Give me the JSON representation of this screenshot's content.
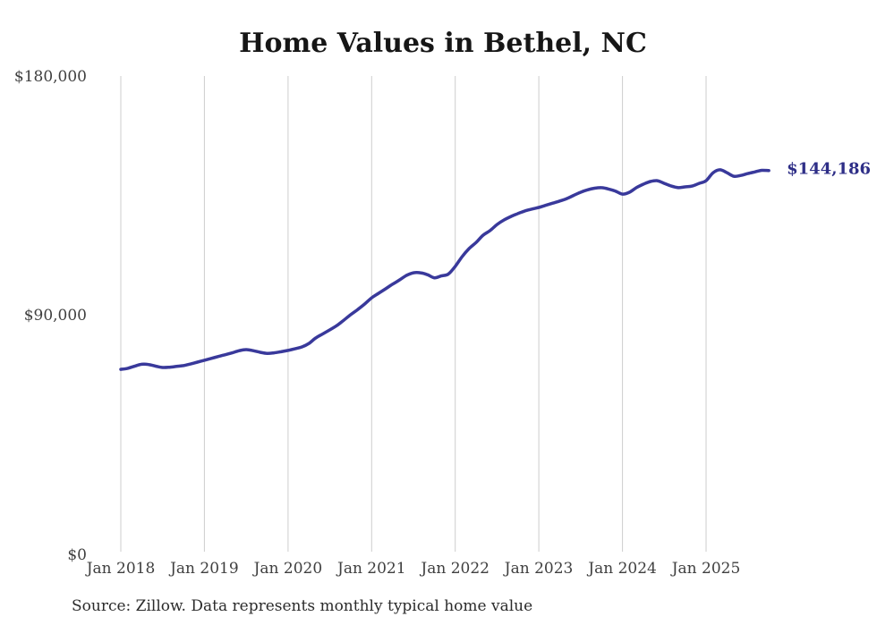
{
  "title": "Home Values in Bethel, NC",
  "source_note": "Source: Zillow. Data represents monthly typical home value",
  "end_label": "$144,186",
  "colors": {
    "line": "#39399b",
    "end_label_text": "#2e2e87",
    "gridline": "#cdcdcd",
    "title_text": "#161616",
    "axis_label_text": "#3f3f3f",
    "source_text": "#2b2b2b",
    "background": "#ffffff"
  },
  "chart_data": {
    "type": "line",
    "title": "Home Values in Bethel, NC",
    "xlabel": "",
    "ylabel": "",
    "ylim": [
      0,
      180000
    ],
    "grid": "vertical-only",
    "legend": "none",
    "x_start_month": "2018-01",
    "x_end_month": "2025-10",
    "x_tick_labels": [
      "Jan 2018",
      "Jan 2019",
      "Jan 2020",
      "Jan 2021",
      "Jan 2022",
      "Jan 2023",
      "Jan 2024",
      "Jan 2025"
    ],
    "y_tick_labels": [
      "$0",
      "$90,000",
      "$180,000"
    ],
    "last_value": 144186,
    "last_value_label": "$144,186",
    "series": [
      {
        "name": "Monthly typical home value",
        "values": [
          69700,
          70100,
          70900,
          71600,
          71500,
          70900,
          70400,
          70500,
          70800,
          71100,
          71700,
          72400,
          73100,
          73800,
          74500,
          75200,
          75900,
          76700,
          77100,
          76700,
          76100,
          75700,
          75900,
          76300,
          76800,
          77400,
          78100,
          79400,
          81500,
          83000,
          84500,
          86100,
          88100,
          90200,
          92100,
          94200,
          96500,
          98200,
          99900,
          101600,
          103200,
          104900,
          105900,
          105900,
          105200,
          104000,
          104700,
          105400,
          108300,
          112000,
          115000,
          117300,
          120000,
          121700,
          124000,
          125700,
          127000,
          128100,
          129100,
          129800,
          130400,
          131200,
          132000,
          132800,
          133700,
          134900,
          136100,
          137000,
          137600,
          137800,
          137300,
          136500,
          135400,
          136100,
          137800,
          139100,
          140100,
          140400,
          139400,
          138400,
          137800,
          138100,
          138400,
          139400,
          140400,
          143400,
          144500,
          143400,
          142100,
          142400,
          143100,
          143700,
          144300,
          144186
        ]
      }
    ]
  }
}
